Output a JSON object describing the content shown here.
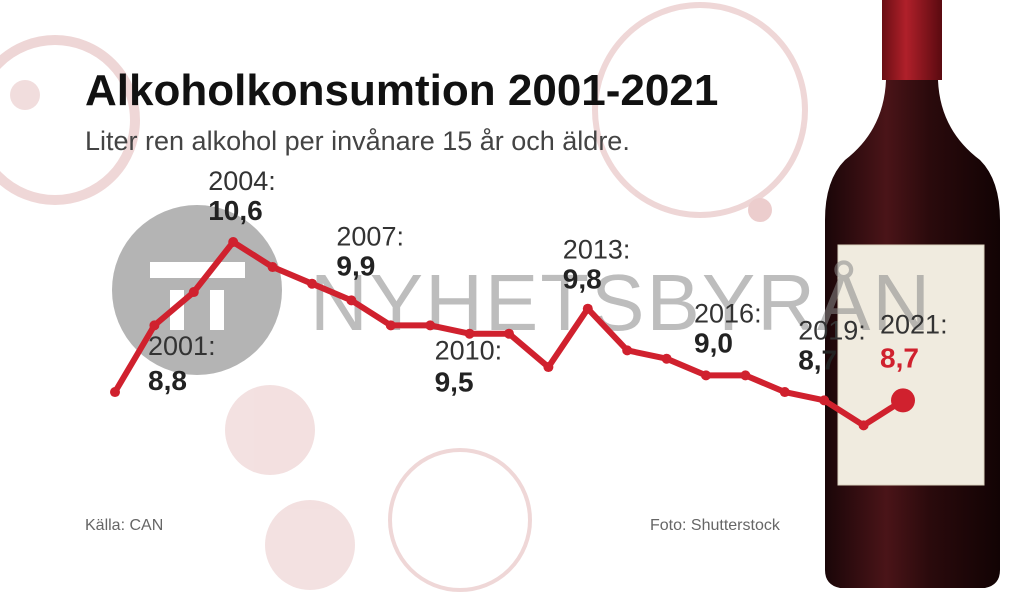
{
  "chart_data": {
    "type": "line",
    "title": "Alkoholkonsumtion 2001-2021",
    "subtitle": "Liter ren alkohol per invånare 15 år och äldre.",
    "source": "Källa: CAN",
    "photo_credit": "Foto: Shutterstock",
    "watermark": "NYHETSBYRÅN",
    "x": [
      2001,
      2002,
      2003,
      2004,
      2005,
      2006,
      2007,
      2008,
      2009,
      2010,
      2011,
      2012,
      2013,
      2014,
      2015,
      2016,
      2017,
      2018,
      2019,
      2020,
      2021
    ],
    "series": [
      {
        "name": null,
        "color": "#d0212e",
        "values": [
          8.8,
          9.6,
          10.0,
          10.6,
          10.3,
          10.1,
          9.9,
          9.6,
          9.6,
          9.5,
          9.5,
          9.1,
          9.8,
          9.3,
          9.2,
          9.0,
          9.0,
          8.8,
          8.7,
          8.4,
          8.7
        ],
        "point_labels": [
          "2001:",
          null,
          null,
          "2004:",
          null,
          null,
          "2007:",
          null,
          null,
          "2010:",
          null,
          null,
          "2013:",
          null,
          null,
          "2016:",
          null,
          null,
          "2019:",
          null,
          "2021:"
        ],
        "value_labels": [
          "8,8",
          null,
          null,
          "10,6",
          null,
          null,
          "9,9",
          null,
          null,
          "9,5",
          null,
          null,
          "9,8",
          null,
          null,
          "9,0",
          null,
          null,
          "8,7",
          null,
          "8,7"
        ]
      }
    ],
    "xlim": [
      2001,
      2021
    ],
    "ylim": [
      8,
      11
    ]
  }
}
